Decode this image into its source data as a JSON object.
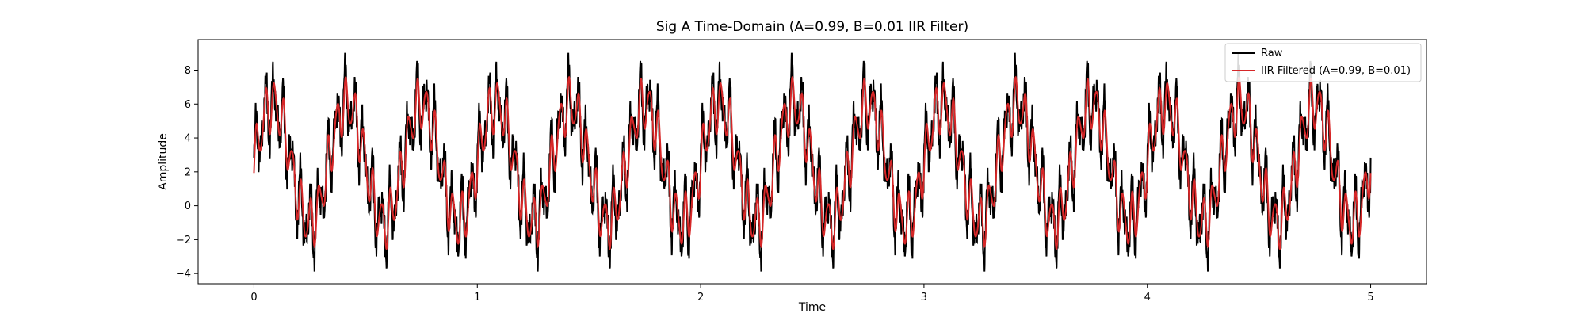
{
  "chart_data": {
    "type": "line",
    "title": "Sig A Time-Domain (A=0.99, B=0.01 IIR Filter)",
    "xlabel": "Time",
    "ylabel": "Amplitude",
    "xlim": [
      -0.25,
      5.25
    ],
    "ylim": [
      -4.6,
      9.8
    ],
    "xticks": [
      0,
      1,
      2,
      3,
      4,
      5
    ],
    "yticks": [
      -4,
      -2,
      0,
      2,
      4,
      6,
      8
    ],
    "grid": false,
    "legend_position": "top-right",
    "signal": {
      "t_start": 0,
      "t_end": 5,
      "offset": 2.5,
      "components": [
        {
          "amplitude": 3.5,
          "frequency_hz": 3
        },
        {
          "amplitude": 1.5,
          "frequency_hz": 25
        },
        {
          "amplitude": 1.0,
          "frequency_hz": 40
        }
      ]
    },
    "series": [
      {
        "name": "Raw",
        "color": "#000000"
      },
      {
        "name": "IIR Filtered (A=0.99, B=0.01)",
        "color": "#d62728"
      }
    ]
  }
}
